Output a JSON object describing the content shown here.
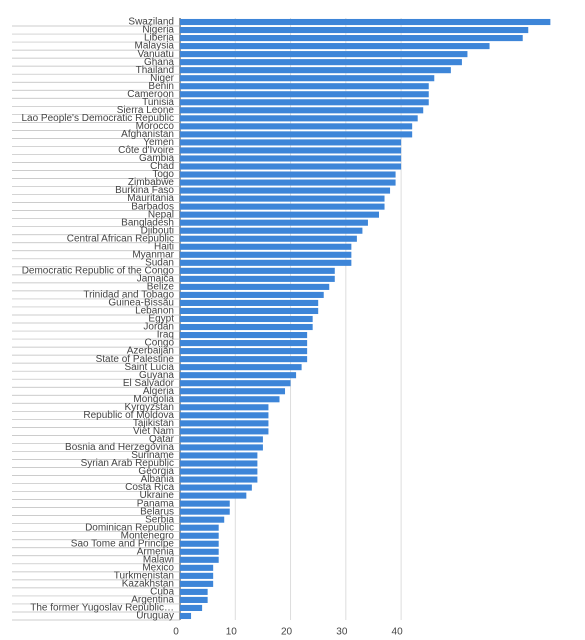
{
  "chart_data": {
    "type": "bar",
    "orientation": "horizontal",
    "color": "#3d85d8",
    "grid": true,
    "categories": [
      "Swaziland",
      "Nigeria",
      "Liberia",
      "Malaysia",
      "Vanuatu",
      "Ghana",
      "Thailand",
      "Niger",
      "Benin",
      "Cameroon",
      "Tunisia",
      "Sierra Leone",
      "Lao People's Democratic Republic",
      "Morocco",
      "Afghanistan",
      "Yemen",
      "Côte d'Ivoire",
      "Gambia",
      "Chad",
      "Togo",
      "Zimbabwe",
      "Burkina Faso",
      "Mauritania",
      "Barbados",
      "Nepal",
      "Bangladesh",
      "Djibouti",
      "Central African Republic",
      "Haiti",
      "Myanmar",
      "Sudan",
      "Democratic Republic of the Congo",
      "Jamaica",
      "Belize",
      "Trinidad and Tobago",
      "Guinea-Bissau",
      "Lebanon",
      "Egypt",
      "Jordan",
      "Iraq",
      "Congo",
      "Azerbaijan",
      "State of Palestine",
      "Saint Lucia",
      "Guyana",
      "El Salvador",
      "Algeria",
      "Mongolia",
      "Kyrgyzstan",
      "Republic of Moldova",
      "Tajikistan",
      "Viet Nam",
      "Qatar",
      "Bosnia and Herzegovina",
      "Suriname",
      "Syrian Arab Republic",
      "Georgia",
      "Albania",
      "Costa Rica",
      "Ukraine",
      "Panama",
      "Belarus",
      "Serbia",
      "Dominican Republic",
      "Montenegro",
      "Sao Tome and Principe",
      "Armenia",
      "Malawi",
      "Mexico",
      "Turkmenistan",
      "Kazakhstan",
      "Cuba",
      "Argentina",
      "The former Yugoslav Republic…",
      "Uruguay"
    ],
    "values": [
      67,
      63,
      62,
      56,
      52,
      51,
      49,
      46,
      45,
      45,
      45,
      44,
      43,
      42,
      42,
      40,
      40,
      40,
      40,
      39,
      39,
      38,
      37,
      37,
      36,
      34,
      33,
      32,
      31,
      31,
      31,
      28,
      28,
      27,
      26,
      25,
      25,
      24,
      24,
      23,
      23,
      23,
      23,
      22,
      21,
      20,
      19,
      18,
      16,
      16,
      16,
      16,
      15,
      15,
      14,
      14,
      14,
      14,
      13,
      12,
      9,
      9,
      8,
      7,
      7,
      7,
      7,
      7,
      6,
      6,
      6,
      5,
      5,
      4,
      2
    ],
    "xlim": [
      0,
      72
    ],
    "xticks": [
      0,
      10,
      20,
      30,
      40
    ]
  }
}
